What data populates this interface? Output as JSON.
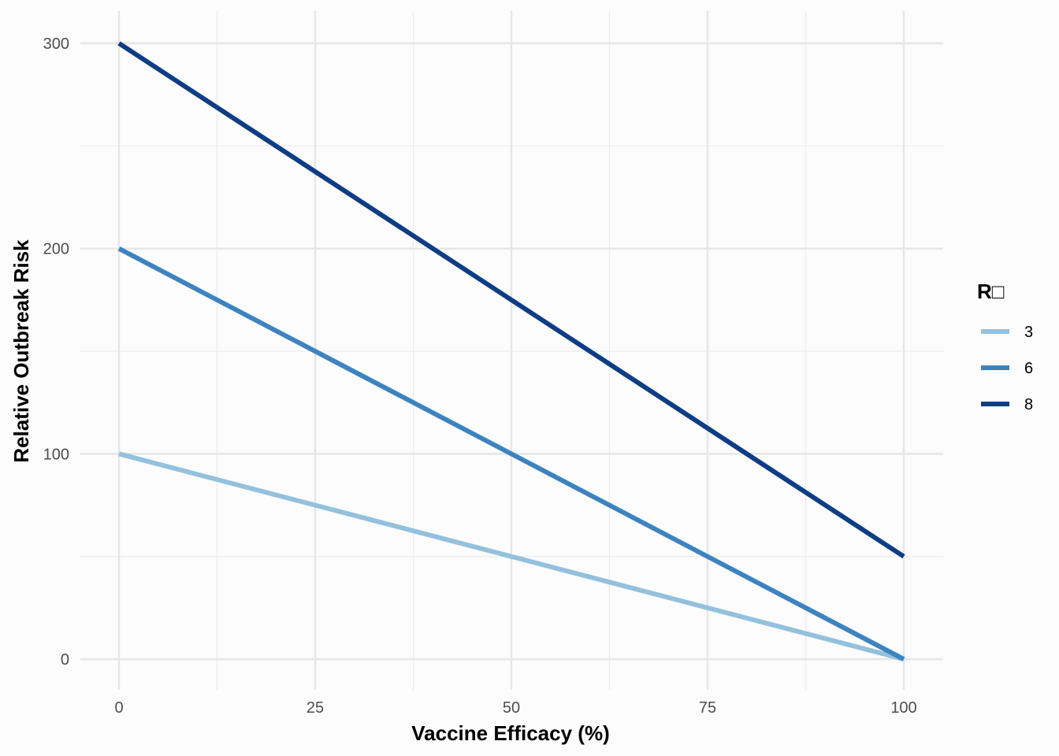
{
  "chart_data": {
    "type": "line",
    "title": "",
    "xlabel": "Vaccine Efficacy (%)",
    "ylabel": "Relative Outbreak Risk",
    "xlim": [
      0,
      100
    ],
    "ylim": [
      0,
      300
    ],
    "x_ticks": [
      0,
      25,
      50,
      75,
      100
    ],
    "x_tick_labels": [
      "0",
      "25",
      "50",
      "75",
      "100"
    ],
    "y_ticks": [
      0,
      100,
      200,
      300
    ],
    "y_tick_labels": [
      "0",
      "100",
      "200",
      "300"
    ],
    "grid": true,
    "legend": {
      "title": "R□",
      "position": "right"
    },
    "series": [
      {
        "name": "3",
        "color": "#93c1dd",
        "x": [
          0,
          100
        ],
        "y": [
          100,
          0
        ]
      },
      {
        "name": "6",
        "color": "#3d83c0",
        "x": [
          0,
          100
        ],
        "y": [
          200,
          0
        ]
      },
      {
        "name": "8",
        "color": "#0e3d85",
        "x": [
          0,
          100
        ],
        "y": [
          300,
          50
        ]
      }
    ]
  }
}
